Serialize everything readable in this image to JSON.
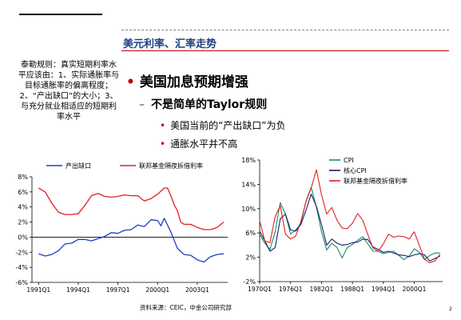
{
  "header": {
    "title": "美元利率、汇率走势"
  },
  "side_note": "泰勒规则：真实短期利率水平应该由：1、实际通胀率与目标通胀率的偏离程度；2、“产出缺口”的大小；3、与充分就业相适应的短期利率水平",
  "bullets": {
    "level1": "美国加息预期增强",
    "level2": "不是简单的Taylor规则",
    "level3": [
      "美国当前的“产出缺口”为负",
      "通胀水平并不高"
    ]
  },
  "source": "资料来源：CEIC，中金公司研究部",
  "page_number": "2",
  "colors": {
    "blue": "#1f3fbf",
    "red": "#e02020",
    "green": "#1a8c6b",
    "navy": "#16206b",
    "accent": "#c00000"
  },
  "chart_data": [
    {
      "type": "line",
      "title": "",
      "xlabel": "",
      "ylabel": "",
      "grid": false,
      "legend": "top",
      "ylim": [
        -6,
        8
      ],
      "yticks": [
        "8%",
        "6%",
        "4%",
        "2%",
        "0%",
        "-2%",
        "-4%",
        "-6%"
      ],
      "xticks": [
        "1991Q1",
        "1994Q1",
        "1997Q1",
        "2000Q1",
        "2003Q1"
      ],
      "series": [
        {
          "name": "产出缺口",
          "color": "#1f3fbf",
          "points": [
            [
              1991.0,
              -2.2
            ],
            [
              1991.5,
              -2.5
            ],
            [
              1992.0,
              -2.3
            ],
            [
              1992.5,
              -1.8
            ],
            [
              1993.0,
              -0.9
            ],
            [
              1993.5,
              -0.8
            ],
            [
              1994.0,
              -0.3
            ],
            [
              1994.5,
              -0.3
            ],
            [
              1995.0,
              -0.5
            ],
            [
              1995.5,
              -0.2
            ],
            [
              1996.0,
              0.1
            ],
            [
              1996.5,
              0.6
            ],
            [
              1997.0,
              0.5
            ],
            [
              1997.5,
              0.9
            ],
            [
              1998.0,
              1.0
            ],
            [
              1998.5,
              1.6
            ],
            [
              1999.0,
              1.4
            ],
            [
              1999.5,
              2.3
            ],
            [
              2000.0,
              2.2
            ],
            [
              2000.25,
              1.5
            ],
            [
              2000.5,
              2.5
            ],
            [
              2000.75,
              1.6
            ],
            [
              2001.0,
              0.7
            ],
            [
              2001.5,
              -1.5
            ],
            [
              2002.0,
              -2.3
            ],
            [
              2002.5,
              -2.4
            ],
            [
              2003.0,
              -3.0
            ],
            [
              2003.5,
              -3.3
            ],
            [
              2004.0,
              -2.6
            ],
            [
              2004.5,
              -2.3
            ],
            [
              2005.0,
              -2.2
            ]
          ]
        },
        {
          "name": "联邦基金隔夜拆借利率",
          "color": "#e02020",
          "points": [
            [
              1991.0,
              6.5
            ],
            [
              1991.5,
              6.0
            ],
            [
              1992.0,
              4.5
            ],
            [
              1992.5,
              3.3
            ],
            [
              1993.0,
              3.0
            ],
            [
              1993.5,
              3.0
            ],
            [
              1994.0,
              3.1
            ],
            [
              1994.5,
              4.2
            ],
            [
              1995.0,
              5.5
            ],
            [
              1995.5,
              5.8
            ],
            [
              1996.0,
              5.4
            ],
            [
              1996.5,
              5.3
            ],
            [
              1997.0,
              5.4
            ],
            [
              1997.5,
              5.6
            ],
            [
              1998.0,
              5.5
            ],
            [
              1998.5,
              5.5
            ],
            [
              1999.0,
              4.8
            ],
            [
              1999.5,
              5.1
            ],
            [
              2000.0,
              5.7
            ],
            [
              2000.5,
              6.5
            ],
            [
              2000.75,
              6.5
            ],
            [
              2001.0,
              5.5
            ],
            [
              2001.25,
              4.3
            ],
            [
              2001.5,
              3.5
            ],
            [
              2001.75,
              2.0
            ],
            [
              2002.0,
              1.7
            ],
            [
              2002.5,
              1.7
            ],
            [
              2003.0,
              1.3
            ],
            [
              2003.5,
              1.0
            ],
            [
              2004.0,
              1.0
            ],
            [
              2004.5,
              1.3
            ],
            [
              2005.0,
              2.0
            ]
          ]
        }
      ]
    },
    {
      "type": "line",
      "title": "",
      "xlabel": "",
      "ylabel": "",
      "grid": false,
      "legend": "top-right",
      "ylim": [
        -2,
        18
      ],
      "yticks": [
        "18%",
        "14%",
        "10%",
        "6%",
        "2%",
        "-2%"
      ],
      "xticks": [
        "1970Q1",
        "1976Q1",
        "1982Q1",
        "1988Q1",
        "1994Q1",
        "2000Q1"
      ],
      "series": [
        {
          "name": "CPI",
          "color": "#1a8c6b",
          "points": [
            [
              1970,
              5.8
            ],
            [
              1971,
              4.3
            ],
            [
              1972,
              3.3
            ],
            [
              1973,
              6.2
            ],
            [
              1974,
              11.0
            ],
            [
              1975,
              9.1
            ],
            [
              1976,
              5.8
            ],
            [
              1977,
              6.5
            ],
            [
              1978,
              7.6
            ],
            [
              1979,
              11.3
            ],
            [
              1980,
              13.5
            ],
            [
              1981,
              10.3
            ],
            [
              1982,
              6.2
            ],
            [
              1983,
              3.2
            ],
            [
              1984,
              4.3
            ],
            [
              1985,
              3.6
            ],
            [
              1986,
              1.9
            ],
            [
              1987,
              3.6
            ],
            [
              1988,
              4.1
            ],
            [
              1989,
              4.8
            ],
            [
              1990,
              5.4
            ],
            [
              1991,
              4.2
            ],
            [
              1992,
              3.0
            ],
            [
              1993,
              3.0
            ],
            [
              1994,
              2.6
            ],
            [
              1995,
              2.8
            ],
            [
              1996,
              3.0
            ],
            [
              1997,
              2.3
            ],
            [
              1998,
              1.6
            ],
            [
              1999,
              2.2
            ],
            [
              2000,
              3.4
            ],
            [
              2001,
              2.8
            ],
            [
              2002,
              1.6
            ],
            [
              2003,
              2.3
            ],
            [
              2004,
              2.7
            ],
            [
              2005,
              2.7
            ]
          ]
        },
        {
          "name": "核心CPI",
          "color": "#16206b",
          "points": [
            [
              1970,
              6.3
            ],
            [
              1971,
              4.7
            ],
            [
              1972,
              3.0
            ],
            [
              1973,
              3.6
            ],
            [
              1974,
              8.3
            ],
            [
              1975,
              9.1
            ],
            [
              1976,
              6.5
            ],
            [
              1977,
              6.3
            ],
            [
              1978,
              7.4
            ],
            [
              1979,
              9.8
            ],
            [
              1980,
              12.4
            ],
            [
              1981,
              10.4
            ],
            [
              1982,
              7.4
            ],
            [
              1983,
              4.0
            ],
            [
              1984,
              5.0
            ],
            [
              1985,
              4.3
            ],
            [
              1986,
              4.0
            ],
            [
              1987,
              4.1
            ],
            [
              1988,
              4.4
            ],
            [
              1989,
              4.5
            ],
            [
              1990,
              5.0
            ],
            [
              1991,
              4.9
            ],
            [
              1992,
              3.7
            ],
            [
              1993,
              3.3
            ],
            [
              1994,
              2.8
            ],
            [
              1995,
              3.0
            ],
            [
              1996,
              2.7
            ],
            [
              1997,
              2.4
            ],
            [
              1998,
              2.3
            ],
            [
              1999,
              2.1
            ],
            [
              2000,
              2.4
            ],
            [
              2001,
              2.6
            ],
            [
              2002,
              2.4
            ],
            [
              2003,
              1.4
            ],
            [
              2004,
              1.8
            ],
            [
              2005,
              2.2
            ]
          ]
        },
        {
          "name": "联邦基金隔夜拆借利率",
          "color": "#e02020",
          "points": [
            [
              1970,
              8.0
            ],
            [
              1971,
              4.7
            ],
            [
              1972,
              4.4
            ],
            [
              1973,
              8.7
            ],
            [
              1974,
              10.5
            ],
            [
              1975,
              5.8
            ],
            [
              1976,
              5.0
            ],
            [
              1977,
              5.5
            ],
            [
              1978,
              7.9
            ],
            [
              1979,
              11.2
            ],
            [
              1980,
              13.4
            ],
            [
              1981,
              16.4
            ],
            [
              1982,
              12.3
            ],
            [
              1983,
              9.1
            ],
            [
              1984,
              10.2
            ],
            [
              1985,
              8.1
            ],
            [
              1986,
              6.8
            ],
            [
              1987,
              6.7
            ],
            [
              1988,
              7.6
            ],
            [
              1989,
              9.2
            ],
            [
              1990,
              8.1
            ],
            [
              1991,
              5.7
            ],
            [
              1992,
              3.5
            ],
            [
              1993,
              3.0
            ],
            [
              1994,
              4.2
            ],
            [
              1995,
              5.8
            ],
            [
              1996,
              5.3
            ],
            [
              1997,
              5.5
            ],
            [
              1998,
              5.4
            ],
            [
              1999,
              5.0
            ],
            [
              2000,
              6.2
            ],
            [
              2001,
              3.9
            ],
            [
              2002,
              1.7
            ],
            [
              2003,
              1.1
            ],
            [
              2004,
              1.4
            ],
            [
              2005,
              2.5
            ]
          ]
        }
      ]
    }
  ]
}
